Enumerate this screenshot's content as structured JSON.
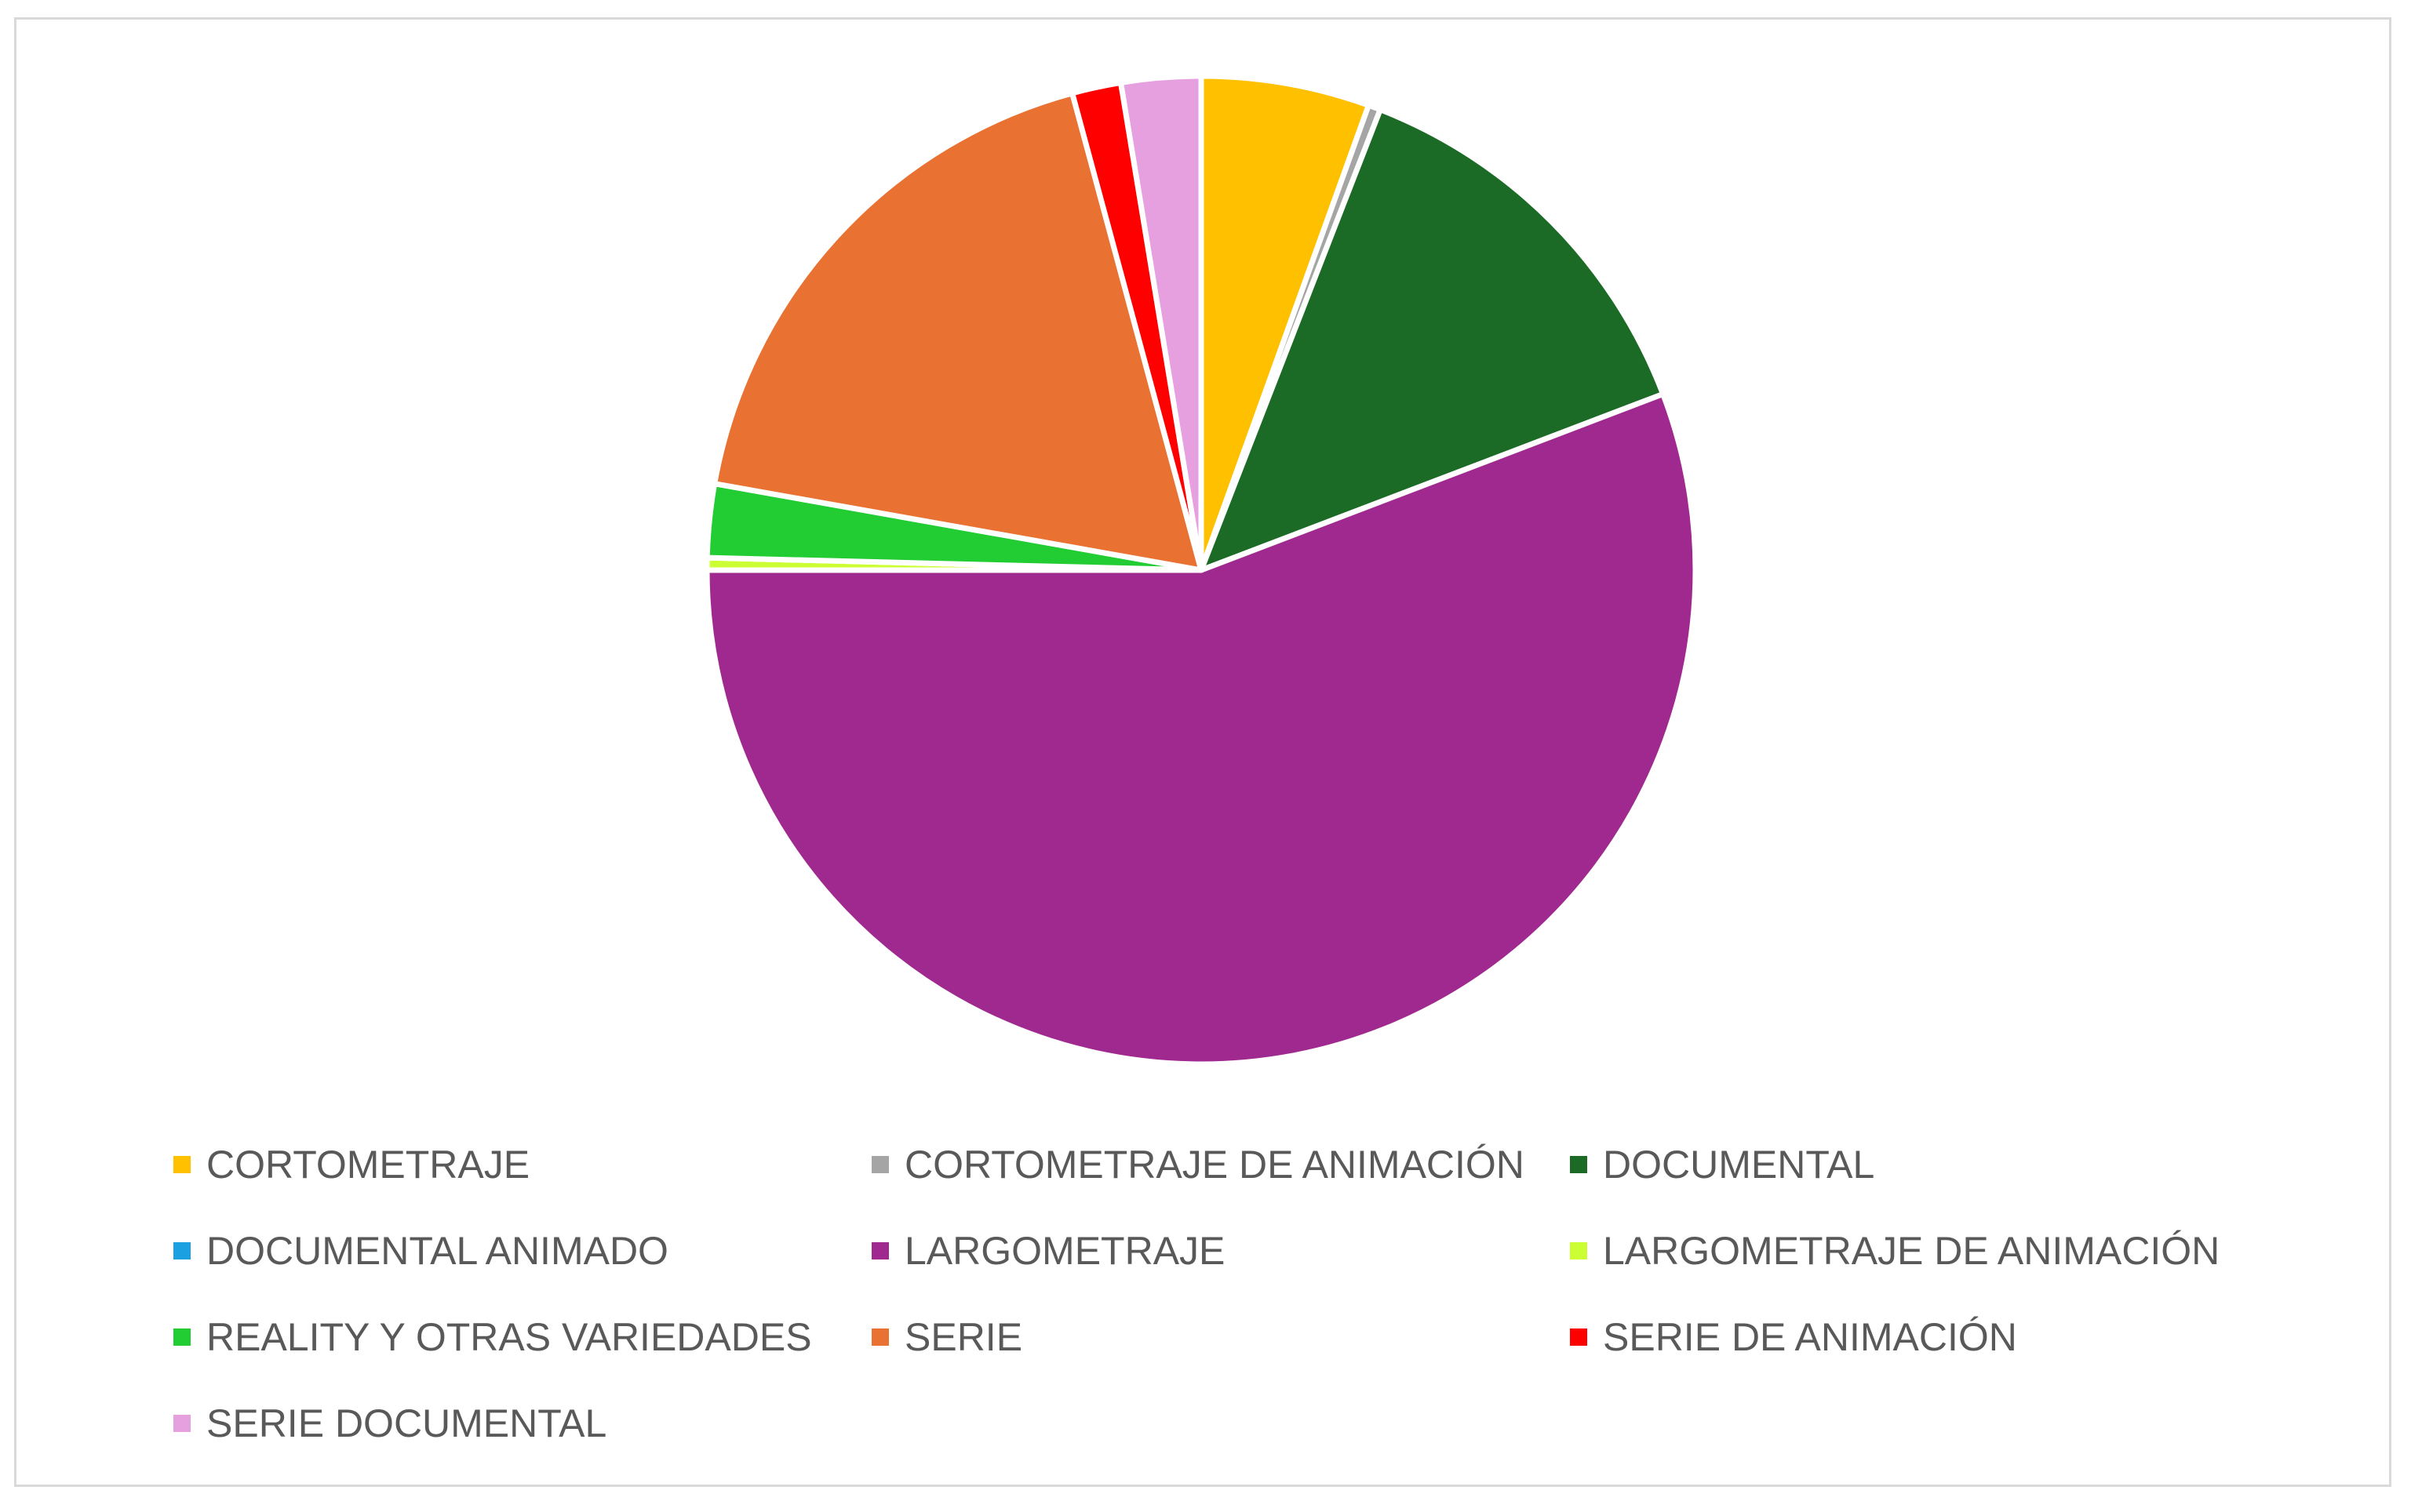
{
  "chart_data": {
    "type": "pie",
    "title": "",
    "legend_position": "bottom",
    "start_angle": "12 o'clock, clockwise",
    "slices": [
      {
        "label": "CORTOMETRAJE",
        "value": 5.5,
        "color": "#FFC000"
      },
      {
        "label": "CORTOMETRAJE DE ANIMACIÓN",
        "value": 0.4,
        "color": "#A5A5A5"
      },
      {
        "label": "DOCUMENTAL",
        "value": 13.3,
        "color": "#1B6B27"
      },
      {
        "label": "DOCUMENTAL ANIMADO",
        "value": 0.0,
        "color": "#1BA1E2"
      },
      {
        "label": "LARGOMETRAJE",
        "value": 55.8,
        "color": "#A0298F"
      },
      {
        "label": "LARGOMETRAJE DE ANIMACIÓN",
        "value": 0.4,
        "color": "#CCFF33"
      },
      {
        "label": "REALITY Y OTRAS VARIEDADES",
        "value": 2.4,
        "color": "#22CC33"
      },
      {
        "label": "SERIE",
        "value": 18.0,
        "color": "#E97132"
      },
      {
        "label": "SERIE DE ANIMACIÓN",
        "value": 1.6,
        "color": "#FF0000"
      },
      {
        "label": "SERIE DOCUMENTAL",
        "value": 2.6,
        "color": "#E6A0E0"
      }
    ]
  }
}
